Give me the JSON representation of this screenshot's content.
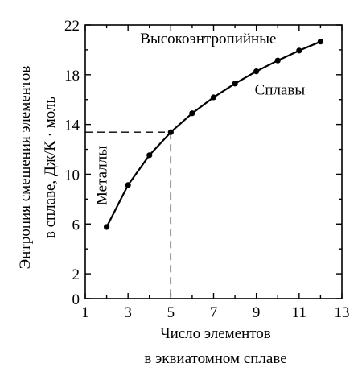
{
  "chart_data": {
    "type": "line",
    "x": [
      2,
      3,
      4,
      5,
      6,
      7,
      8,
      9,
      10,
      11,
      12
    ],
    "series": [
      {
        "values": [
          5.76,
          9.13,
          11.53,
          13.38,
          14.9,
          16.18,
          17.29,
          18.27,
          19.14,
          19.94,
          20.66
        ]
      }
    ],
    "xlabel_lines": [
      "Число элементов",
      "в эквиатомном сплаве"
    ],
    "ylabel_lines": [
      "Энтропия смешения элементов",
      "в сплаве, Дж/К · моль"
    ],
    "xlim": [
      1,
      13
    ],
    "ylim": [
      0,
      22
    ],
    "xticks": [
      1,
      3,
      5,
      7,
      9,
      11,
      13
    ],
    "yticks": [
      0,
      2,
      6,
      10,
      14,
      18,
      22
    ],
    "grid": false,
    "reference_lines": {
      "x": 5,
      "y": 13.38,
      "style": "dashed"
    },
    "annotations": [
      {
        "text": "Высокоэнтропийные",
        "x": 6.75,
        "y": 20.5,
        "rotation": 0
      },
      {
        "text": "Сплавы",
        "x": 10.1,
        "y": 16.4,
        "rotation": 0
      },
      {
        "text": "Металлы",
        "x": 2.0,
        "y": 9.9,
        "rotation": -90
      }
    ]
  }
}
